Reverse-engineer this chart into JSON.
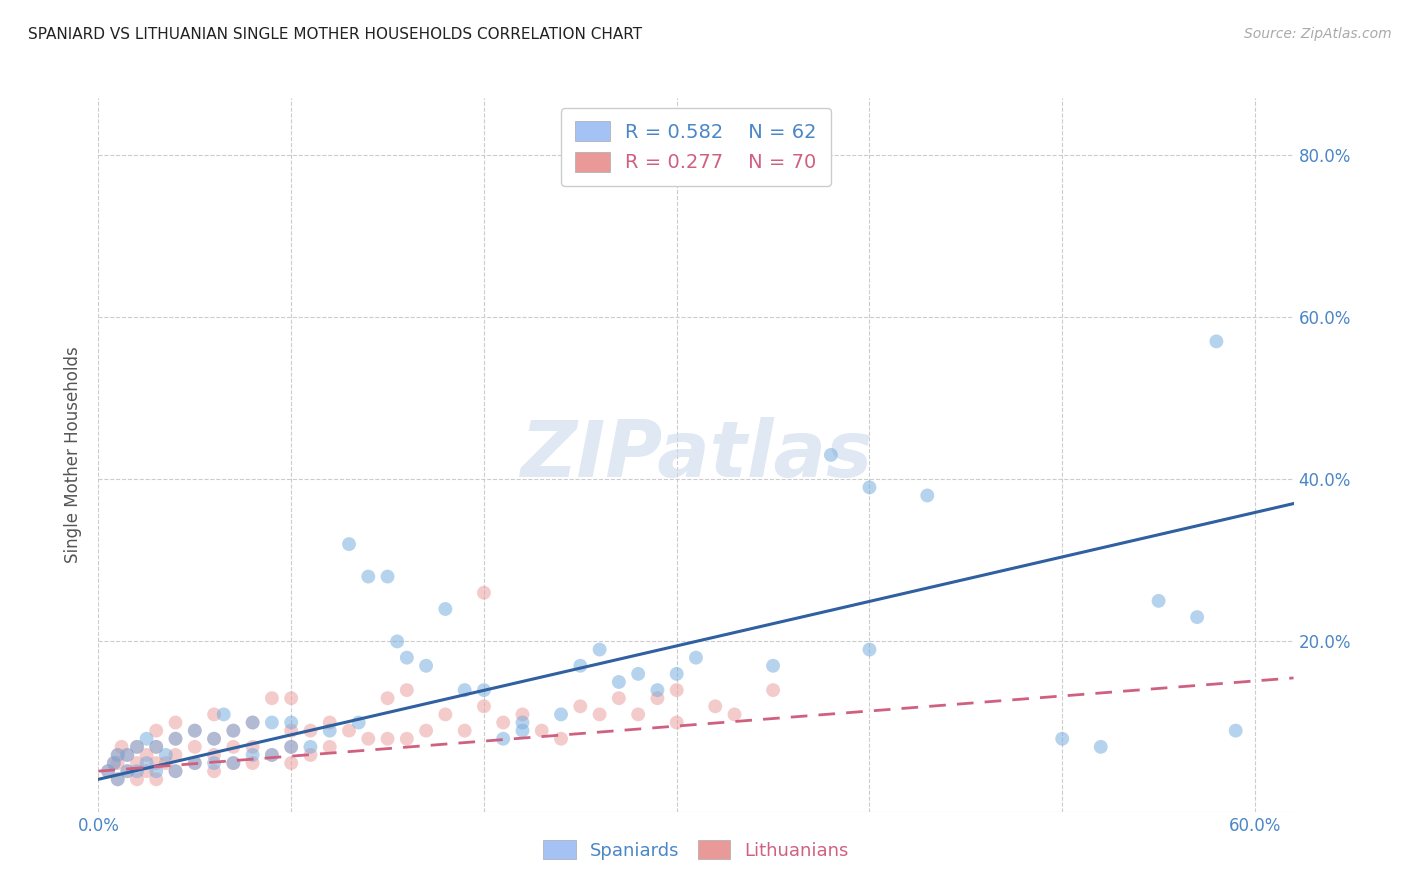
{
  "title": "SPANIARD VS LITHUANIAN SINGLE MOTHER HOUSEHOLDS CORRELATION CHART",
  "source": "Source: ZipAtlas.com",
  "ylabel": "Single Mother Households",
  "xlim": [
    0.0,
    0.62
  ],
  "ylim": [
    -0.01,
    0.87
  ],
  "xtick_labels": [
    "0.0%",
    "",
    "",
    "",
    "",
    "",
    "60.0%"
  ],
  "xtick_vals": [
    0.0,
    0.1,
    0.2,
    0.3,
    0.4,
    0.5,
    0.6
  ],
  "ytick_labels": [
    "20.0%",
    "40.0%",
    "60.0%",
    "80.0%"
  ],
  "ytick_vals": [
    0.2,
    0.4,
    0.6,
    0.8
  ],
  "watermark": "ZIPatlas",
  "spaniard_color": "#6fa8dc",
  "spaniard_edge_color": "#6fa8dc",
  "lithuanian_color": "#ea9999",
  "lithuanian_edge_color": "#ea9999",
  "spaniard_R": 0.582,
  "spaniard_N": 62,
  "lithuanian_R": 0.277,
  "lithuanian_N": 70,
  "spaniard_line_color": "#3060a0",
  "lithuanian_line_color": "#d06080",
  "legend_box_spaniard": "#a4c2f4",
  "legend_box_lithuanian": "#ea9999",
  "spaniard_line_y0": 0.03,
  "spaniard_line_y1": 0.37,
  "lithuanian_line_y0": 0.04,
  "lithuanian_line_y1": 0.155,
  "spaniards_x": [
    0.005,
    0.008,
    0.01,
    0.01,
    0.015,
    0.015,
    0.02,
    0.02,
    0.025,
    0.025,
    0.03,
    0.03,
    0.035,
    0.04,
    0.04,
    0.05,
    0.05,
    0.06,
    0.06,
    0.065,
    0.07,
    0.07,
    0.08,
    0.08,
    0.09,
    0.09,
    0.1,
    0.1,
    0.11,
    0.12,
    0.13,
    0.135,
    0.14,
    0.15,
    0.155,
    0.16,
    0.17,
    0.18,
    0.19,
    0.2,
    0.21,
    0.22,
    0.22,
    0.24,
    0.25,
    0.26,
    0.27,
    0.28,
    0.29,
    0.3,
    0.31,
    0.35,
    0.38,
    0.4,
    0.4,
    0.43,
    0.5,
    0.52,
    0.55,
    0.57,
    0.58,
    0.59
  ],
  "spaniards_y": [
    0.04,
    0.05,
    0.03,
    0.06,
    0.04,
    0.06,
    0.04,
    0.07,
    0.05,
    0.08,
    0.04,
    0.07,
    0.06,
    0.04,
    0.08,
    0.05,
    0.09,
    0.05,
    0.08,
    0.11,
    0.05,
    0.09,
    0.06,
    0.1,
    0.06,
    0.1,
    0.07,
    0.1,
    0.07,
    0.09,
    0.32,
    0.1,
    0.28,
    0.28,
    0.2,
    0.18,
    0.17,
    0.24,
    0.14,
    0.14,
    0.08,
    0.09,
    0.1,
    0.11,
    0.17,
    0.19,
    0.15,
    0.16,
    0.14,
    0.16,
    0.18,
    0.17,
    0.43,
    0.39,
    0.19,
    0.38,
    0.08,
    0.07,
    0.25,
    0.23,
    0.57,
    0.09
  ],
  "lithuanians_x": [
    0.005,
    0.008,
    0.01,
    0.01,
    0.01,
    0.012,
    0.015,
    0.015,
    0.02,
    0.02,
    0.02,
    0.025,
    0.025,
    0.03,
    0.03,
    0.03,
    0.03,
    0.035,
    0.04,
    0.04,
    0.04,
    0.04,
    0.05,
    0.05,
    0.05,
    0.06,
    0.06,
    0.06,
    0.06,
    0.07,
    0.07,
    0.07,
    0.08,
    0.08,
    0.08,
    0.09,
    0.09,
    0.1,
    0.1,
    0.1,
    0.1,
    0.11,
    0.11,
    0.12,
    0.12,
    0.13,
    0.14,
    0.15,
    0.15,
    0.16,
    0.16,
    0.17,
    0.18,
    0.19,
    0.2,
    0.2,
    0.21,
    0.22,
    0.23,
    0.24,
    0.25,
    0.26,
    0.27,
    0.28,
    0.29,
    0.3,
    0.3,
    0.32,
    0.33,
    0.35
  ],
  "lithuanians_y": [
    0.04,
    0.05,
    0.03,
    0.05,
    0.06,
    0.07,
    0.04,
    0.06,
    0.03,
    0.05,
    0.07,
    0.04,
    0.06,
    0.03,
    0.05,
    0.07,
    0.09,
    0.05,
    0.04,
    0.06,
    0.08,
    0.1,
    0.05,
    0.07,
    0.09,
    0.04,
    0.06,
    0.08,
    0.11,
    0.05,
    0.07,
    0.09,
    0.05,
    0.07,
    0.1,
    0.06,
    0.13,
    0.05,
    0.07,
    0.09,
    0.13,
    0.06,
    0.09,
    0.07,
    0.1,
    0.09,
    0.08,
    0.08,
    0.13,
    0.08,
    0.14,
    0.09,
    0.11,
    0.09,
    0.12,
    0.26,
    0.1,
    0.11,
    0.09,
    0.08,
    0.12,
    0.11,
    0.13,
    0.11,
    0.13,
    0.1,
    0.14,
    0.12,
    0.11,
    0.14
  ],
  "background_color": "#ffffff",
  "grid_color": "#cccccc",
  "title_color": "#222222",
  "axis_label_color": "#555555",
  "tick_color": "#4a86c8",
  "scatter_size": 100,
  "scatter_alpha": 0.5
}
